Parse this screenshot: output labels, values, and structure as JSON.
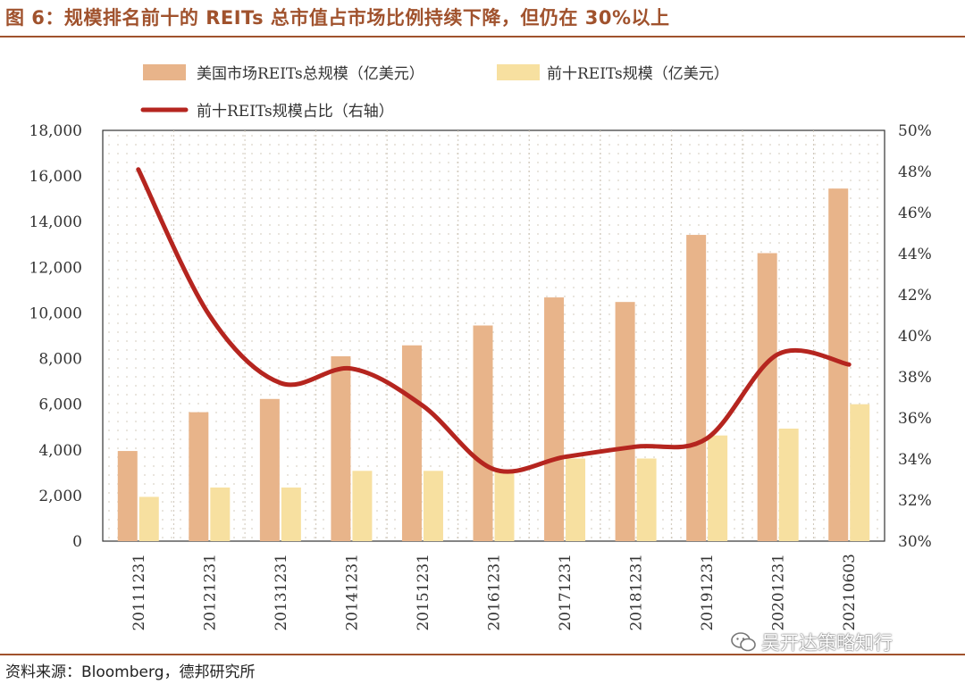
{
  "figure_title": "图 6：规模排名前十的 REITs 总市值占市场比例持续下降，但仍在 30%以上",
  "source": "资料来源：Bloomberg，德邦研究所",
  "watermark": "吴开达策略知行",
  "colors": {
    "title": "#a0522d",
    "total_bar": "#e8b48a",
    "top10_bar": "#f7e0a0",
    "share_line": "#b5251f",
    "plot_bg": "#fdfaf5"
  },
  "chart_data": {
    "type": "bar",
    "categories": [
      "20111231",
      "20121231",
      "20131231",
      "20141231",
      "20151231",
      "20161231",
      "20171231",
      "20181231",
      "20191231",
      "20201231",
      "20210603"
    ],
    "series": [
      {
        "name": "美国市场REITs总规模（亿美元）",
        "type": "bar",
        "axis": "left",
        "values": [
          3950,
          5650,
          6230,
          8100,
          8580,
          9450,
          10680,
          10480,
          13420,
          12620,
          15450
        ]
      },
      {
        "name": "前十REITs规模（亿美元）",
        "type": "bar",
        "axis": "left",
        "values": [
          1940,
          2350,
          2350,
          3080,
          3080,
          3030,
          3620,
          3620,
          4630,
          4930,
          6000
        ]
      },
      {
        "name": "前十REITs规模占比（右轴）",
        "type": "line",
        "axis": "right",
        "values": [
          48.1,
          41.0,
          37.7,
          38.4,
          36.6,
          33.5,
          34.1,
          34.6,
          35.0,
          39.1,
          38.6
        ]
      }
    ],
    "left_axis": {
      "ylim": [
        0,
        18000
      ],
      "ticks": [
        "0",
        "2,000",
        "4,000",
        "6,000",
        "8,000",
        "10,000",
        "12,000",
        "14,000",
        "16,000",
        "18,000"
      ]
    },
    "right_axis": {
      "ylim": [
        30,
        50
      ],
      "ticks": [
        "30%",
        "32%",
        "34%",
        "36%",
        "38%",
        "40%",
        "42%",
        "44%",
        "46%",
        "48%",
        "50%"
      ]
    },
    "legend_position": "top",
    "grid": true
  }
}
